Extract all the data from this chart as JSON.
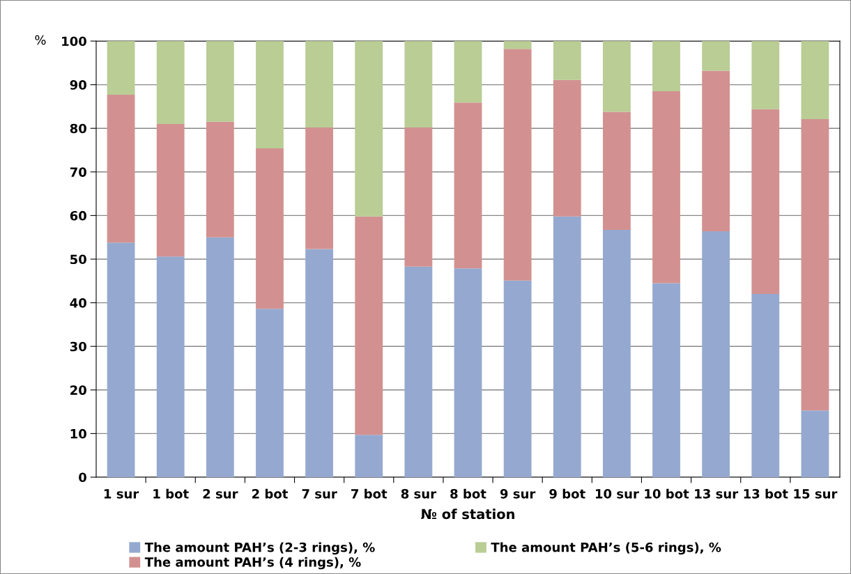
{
  "chart_data": {
    "type": "bar",
    "stacked": true,
    "ylabel": "%",
    "xlabel": "№ of station",
    "categories": [
      "1 sur",
      "1 bot",
      "2 sur",
      "2 bot",
      "7 sur",
      "7 bot",
      "8 sur",
      "8 bot",
      "9 sur",
      "9 bot",
      "10 sur",
      "10 bot",
      "13 sur",
      "13 bot",
      "15 sur"
    ],
    "series": [
      {
        "name": "The amount PAH’s (2-3 rings), %",
        "color": "#95a9d0",
        "values": [
          53.8,
          50.6,
          55.0,
          38.6,
          52.3,
          9.7,
          48.3,
          47.9,
          45.1,
          59.8,
          56.7,
          44.5,
          56.4,
          42.0,
          15.3
        ]
      },
      {
        "name": "The amount PAH’s (4 rings), %",
        "color": "#d29190",
        "values": [
          33.9,
          30.4,
          26.5,
          36.8,
          27.9,
          50.1,
          31.9,
          38.0,
          53.1,
          31.3,
          27.1,
          44.0,
          36.8,
          42.4,
          66.8
        ]
      },
      {
        "name": "The amount PAH’s (5-6 rings), %",
        "color": "#b9cd95",
        "values": [
          12.3,
          19.0,
          18.5,
          24.6,
          19.8,
          40.2,
          19.8,
          14.1,
          1.8,
          8.9,
          16.2,
          11.5,
          6.8,
          15.6,
          17.9
        ]
      }
    ],
    "ylim": [
      0,
      100
    ],
    "yticks": [
      0,
      10,
      20,
      30,
      40,
      50,
      60,
      70,
      80,
      90,
      100
    ],
    "grid": "y",
    "legend": "bottom"
  }
}
